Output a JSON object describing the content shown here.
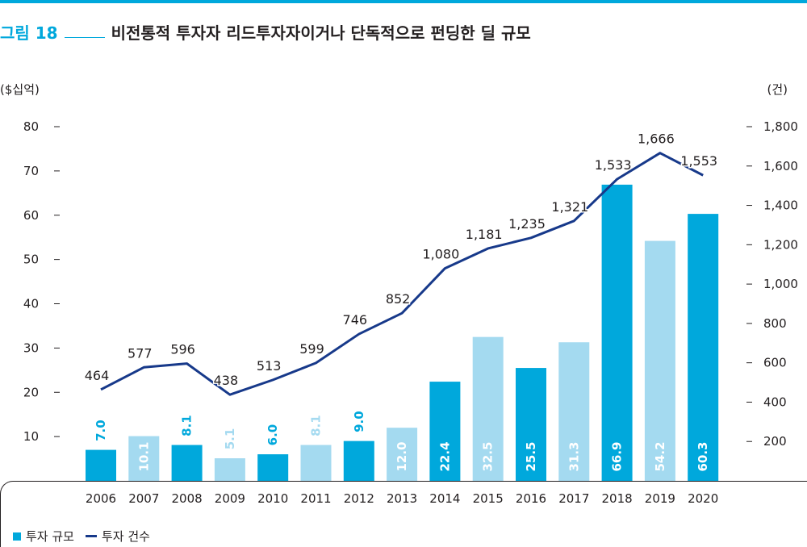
{
  "figure": {
    "label": "그림 18",
    "title": "비전통적 투자자 리드투자자이거나 단독적으로 펀딩한 딜 규모",
    "left_unit": "($십억)",
    "right_unit": "(건)"
  },
  "legend": {
    "bar_label": "투자 규모",
    "line_label": "투자 건수"
  },
  "chart_data": {
    "type": "bar",
    "categories": [
      "2006",
      "2007",
      "2008",
      "2009",
      "2010",
      "2011",
      "2012",
      "2013",
      "2014",
      "2015",
      "2016",
      "2017",
      "2018",
      "2019",
      "2020"
    ],
    "series": [
      {
        "name": "투자 규모",
        "type": "bar",
        "axis": "left",
        "values": [
          7.0,
          10.1,
          8.1,
          5.1,
          6.0,
          8.1,
          9.0,
          12.0,
          22.4,
          32.5,
          25.5,
          31.3,
          66.9,
          54.2,
          60.3
        ],
        "labels": [
          "7.0",
          "10.1",
          "8.1",
          "5.1",
          "6.0",
          "8.1",
          "9.0",
          "12.0",
          "22.4",
          "32.5",
          "25.5",
          "31.3",
          "66.9",
          "54.2",
          "60.3"
        ],
        "colors": [
          "#00a8dc",
          "#a4daf0",
          "#00a8dc",
          "#a4daf0",
          "#00a8dc",
          "#a4daf0",
          "#00a8dc",
          "#a4daf0",
          "#00a8dc",
          "#a4daf0",
          "#00a8dc",
          "#a4daf0",
          "#00a8dc",
          "#a4daf0",
          "#00a8dc"
        ]
      },
      {
        "name": "투자 건수",
        "type": "line",
        "axis": "right",
        "color": "#17398a",
        "values": [
          464,
          577,
          596,
          438,
          513,
          599,
          746,
          852,
          1080,
          1181,
          1235,
          1321,
          1533,
          1666,
          1553
        ],
        "labels": [
          "464",
          "577",
          "596",
          "438",
          "513",
          "599",
          "746",
          "852",
          "1,080",
          "1,181",
          "1,235",
          "1,321",
          "1,533",
          "1,666",
          "1,553"
        ]
      }
    ],
    "left_axis": {
      "ylim": [
        0,
        80
      ],
      "ticks": [
        10,
        20,
        30,
        40,
        50,
        60,
        70,
        80
      ],
      "tick_labels": [
        "10",
        "20",
        "30",
        "40",
        "50",
        "60",
        "70",
        "80"
      ]
    },
    "right_axis": {
      "ylim": [
        0,
        1800
      ],
      "ticks": [
        200,
        400,
        600,
        800,
        1000,
        1200,
        1400,
        1600,
        1800
      ],
      "tick_labels": [
        "200",
        "400",
        "600",
        "800",
        "1,000",
        "1,200",
        "1,400",
        "1,600",
        "1,800"
      ]
    },
    "grid": false
  }
}
